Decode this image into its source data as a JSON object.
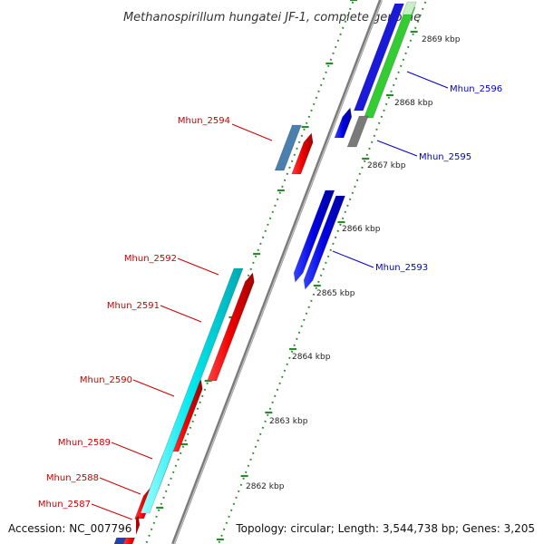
{
  "title": "Methanospirillum hungatei JF-1, complete genome",
  "footer": {
    "accession": "Accession: NC_007796",
    "topology": "Topology: circular; Length: 3,544,738 bp; Genes: 3,205"
  },
  "ruler": [
    {
      "label": "2869 kbp",
      "kbp": 2869
    },
    {
      "label": "2868 kbp",
      "kbp": 2868
    },
    {
      "label": "2867 kbp",
      "kbp": 2867
    },
    {
      "label": "2866 kbp",
      "kbp": 2866
    },
    {
      "label": "2865 kbp",
      "kbp": 2865
    },
    {
      "label": "2864 kbp",
      "kbp": 2864
    },
    {
      "label": "2863 kbp",
      "kbp": 2863
    },
    {
      "label": "2862 kbp",
      "kbp": 2862
    }
  ],
  "genes": [
    {
      "id": "Mhun_2596",
      "strand": "forward",
      "color": "#0000cc"
    },
    {
      "id": "Mhun_2595",
      "strand": "forward",
      "color": "#0000cc"
    },
    {
      "id": "Mhun_2594",
      "strand": "reverse",
      "color": "#cc0000"
    },
    {
      "id": "Mhun_2593",
      "strand": "forward",
      "color": "#0000cc"
    },
    {
      "id": "Mhun_2592",
      "strand": "reverse",
      "color": "#cc0000"
    },
    {
      "id": "Mhun_2591",
      "strand": "reverse",
      "color": "#cc0000"
    },
    {
      "id": "Mhun_2590",
      "strand": "reverse",
      "color": "#cc0000"
    },
    {
      "id": "Mhun_2589",
      "strand": "reverse",
      "color": "#cc0000"
    },
    {
      "id": "Mhun_2588",
      "strand": "reverse",
      "color": "#cc0000"
    },
    {
      "id": "Mhun_2587",
      "strand": "reverse",
      "color": "#cc0000"
    }
  ],
  "colors": {
    "backbone": "#8a8a8a",
    "tick": "#2a8a2a",
    "cds_forward": "#0000ee",
    "cds_reverse": "#ee0000",
    "rna": "#33cc33",
    "pseudo": "#777777",
    "trna": "#4682b4",
    "orf": "#00e5ee"
  }
}
